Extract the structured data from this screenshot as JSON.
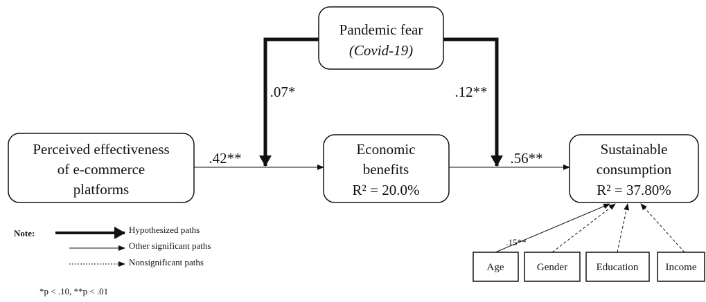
{
  "nodes": [
    {
      "lines": [
        "Pandemic fear",
        "(Covid-19)"
      ]
    },
    {
      "lines": [
        "Perceived effectiveness",
        "of e-commerce",
        "platforms"
      ]
    },
    {
      "lines": [
        "Economic",
        "benefits",
        "R² = 20.0%"
      ]
    },
    {
      "lines": [
        "Sustainable",
        "consumption",
        "R² = 37.80%"
      ]
    },
    {
      "lines": [
        "Age"
      ]
    },
    {
      "lines": [
        "Gender"
      ]
    },
    {
      "lines": [
        "Education"
      ]
    },
    {
      "lines": [
        "Income"
      ]
    }
  ],
  "paths": [
    ".07*",
    ".12**",
    ".42**",
    ".56**",
    ".15**"
  ],
  "note": {
    "title": "Note:",
    "items": [
      "Hypothesized paths",
      "Other significant paths",
      "Nonsignificant paths"
    ],
    "significance": "*p < .10, **p < .01"
  }
}
